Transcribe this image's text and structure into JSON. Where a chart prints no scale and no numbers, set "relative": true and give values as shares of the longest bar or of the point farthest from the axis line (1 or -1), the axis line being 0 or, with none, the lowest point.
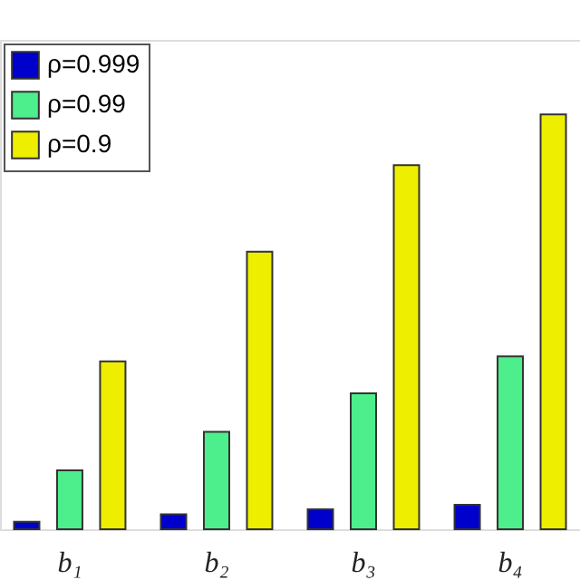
{
  "chart_data": {
    "type": "bar",
    "relative": true,
    "categories": [
      "b₁",
      "b₂",
      "b₃",
      "b₄"
    ],
    "series": [
      {
        "name": "ρ=0.999",
        "color": "#0000cc",
        "values": [
          0.018,
          0.036,
          0.048,
          0.059
        ]
      },
      {
        "name": "ρ=0.99",
        "color": "#4dee8c",
        "values": [
          0.142,
          0.235,
          0.328,
          0.417
        ]
      },
      {
        "name": "ρ=0.9",
        "color": "#eeee00",
        "values": [
          0.405,
          0.669,
          0.878,
          1
        ]
      }
    ],
    "legend": "top left",
    "grid": false
  }
}
